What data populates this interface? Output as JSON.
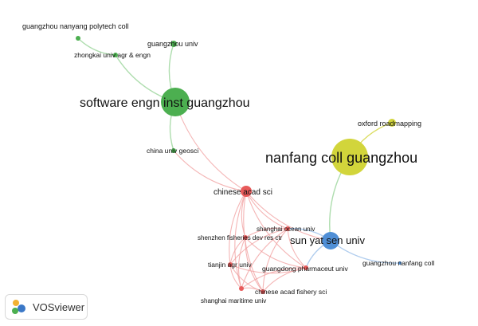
{
  "app": {
    "name": "VOSviewer"
  },
  "colors": {
    "green": "#4caf50",
    "yellow": "#d2d53b",
    "red": "#e85a5a",
    "blue": "#4f8fd6",
    "edge_green": "#9ad49a",
    "edge_red": "#f1a3a3",
    "edge_blue": "#9cc0ea"
  },
  "nodes": [
    {
      "id": "gznanyang",
      "label": "guangzhou nanyang polytech coll",
      "cluster": "green"
    },
    {
      "id": "gzuniv",
      "label": "guangzhou univ",
      "cluster": "green"
    },
    {
      "id": "zhongkai",
      "label": "zhongkai univ agr & engn",
      "cluster": "green"
    },
    {
      "id": "software",
      "label": "software engn inst guangzhou",
      "cluster": "green"
    },
    {
      "id": "chinageo",
      "label": "china univ geosci",
      "cluster": "green"
    },
    {
      "id": "oxford",
      "label": "oxford roadmapping",
      "cluster": "yellow"
    },
    {
      "id": "nanfang",
      "label": "nanfang coll guangzhou",
      "cluster": "yellow"
    },
    {
      "id": "cas",
      "label": "chinese acad sci",
      "cluster": "red"
    },
    {
      "id": "shanghaiocean",
      "label": "shanghai ocean univ",
      "cluster": "red"
    },
    {
      "id": "shenzhen",
      "label": "shenzhen fisheries dev res ctr",
      "cluster": "red"
    },
    {
      "id": "sysu",
      "label": "sun yat sen univ",
      "cluster": "blue"
    },
    {
      "id": "gznanfang",
      "label": "guangzhou nanfang coll",
      "cluster": "blue"
    },
    {
      "id": "tianjin",
      "label": "tianjin agr univ",
      "cluster": "red"
    },
    {
      "id": "gdpharm",
      "label": "guangdong pharmaceut univ",
      "cluster": "red"
    },
    {
      "id": "cafs",
      "label": "chinese acad fishery sci",
      "cluster": "red"
    },
    {
      "id": "shmaritime",
      "label": "shanghai maritime univ",
      "cluster": "red"
    }
  ]
}
